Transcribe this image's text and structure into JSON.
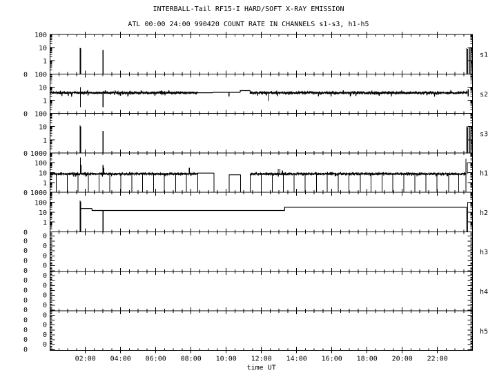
{
  "chart_data": {
    "type": "line",
    "title": "INTERBALL-Tail RF15-I HARD/SOFT X-RAY EMISSION",
    "subtitle": "ATL 00:00 24:00 990420  COUNT RATE IN CHANNELS s1-s3, h1-h5",
    "xlabel": "time UT",
    "xlim_hours": [
      0,
      24
    ],
    "xtick_labels": [
      {
        "t": 2,
        "label": "02:00"
      },
      {
        "t": 4,
        "label": "04:00"
      },
      {
        "t": 6,
        "label": "06:00"
      },
      {
        "t": 8,
        "label": "08:00"
      },
      {
        "t": 10,
        "label": "10:00"
      },
      {
        "t": 12,
        "label": "12:00"
      },
      {
        "t": 14,
        "label": "14:00"
      },
      {
        "t": 16,
        "label": "16:00"
      },
      {
        "t": 18,
        "label": "18:00"
      },
      {
        "t": 20,
        "label": "20:00"
      },
      {
        "t": 22,
        "label": "22:00"
      }
    ],
    "y_scale": "log",
    "grid": false,
    "panels": [
      {
        "name": "s1",
        "ylim": [
          0.1,
          100
        ],
        "ylabels": [
          {
            "v": 100,
            "label": "100"
          },
          {
            "v": 10,
            "label": "10"
          },
          {
            "v": 1,
            "label": "1"
          },
          {
            "v": 0.1,
            "label": "0"
          }
        ],
        "segments": [],
        "spikes": [
          {
            "t": 1.7,
            "from": 0.1,
            "to": 9.4
          },
          {
            "t": 1.73,
            "from": 0.1,
            "to": 9
          },
          {
            "t": 3.0,
            "from": 0.1,
            "to": 6.8
          },
          {
            "t": 23.66,
            "from": 0.1,
            "to": 9
          },
          {
            "t": 23.72,
            "from": 0.1,
            "to": 8
          },
          {
            "t": 23.8,
            "from": 0.1,
            "to": 9
          },
          {
            "t": 23.9,
            "from": 0.1,
            "to": 7
          }
        ],
        "dropouts": []
      },
      {
        "name": "s2",
        "ylim": [
          0.1,
          100
        ],
        "ylabels": [
          {
            "v": 100,
            "label": "100"
          },
          {
            "v": 10,
            "label": "10"
          },
          {
            "v": 1,
            "label": "1"
          },
          {
            "v": 0.1,
            "label": "0"
          }
        ],
        "segments": [
          {
            "from": 0.0,
            "to": 8.38,
            "value": 3.7,
            "noisy": true
          },
          {
            "from": 8.38,
            "to": 9.25,
            "value": 3.7,
            "noisy": false
          },
          {
            "from": 9.25,
            "to": 10.16,
            "value": 4.0,
            "noisy": false
          },
          {
            "from": 10.16,
            "to": 10.8,
            "value": 4.0,
            "noisy": false
          },
          {
            "from": 10.8,
            "to": 11.36,
            "value": 5.4,
            "noisy": false
          },
          {
            "from": 11.36,
            "to": 23.7,
            "value": 3.7,
            "noisy": true
          }
        ],
        "spikes": [
          {
            "t": 1.72,
            "from": 0.3,
            "to": 10
          },
          {
            "t": 3.0,
            "from": 0.3,
            "to": 3.7
          },
          {
            "t": 10.16,
            "from": 2.0,
            "to": 4.0
          },
          {
            "t": 12.4,
            "from": 0.9,
            "to": 3.7
          },
          {
            "t": 23.75,
            "from": 2.0,
            "to": 7
          }
        ],
        "dropouts": []
      },
      {
        "name": "s3",
        "ylim": [
          0.1,
          100
        ],
        "ylabels": [
          {
            "v": 100,
            "label": "100"
          },
          {
            "v": 10,
            "label": "10"
          },
          {
            "v": 1,
            "label": "1"
          },
          {
            "v": 0.1,
            "label": "0"
          }
        ],
        "segments": [],
        "spikes": [
          {
            "t": 1.7,
            "from": 0.1,
            "to": 12
          },
          {
            "t": 1.73,
            "from": 0.1,
            "to": 10
          },
          {
            "t": 3.0,
            "from": 0.1,
            "to": 4.6
          },
          {
            "t": 23.66,
            "from": 0.1,
            "to": 10
          },
          {
            "t": 23.72,
            "from": 0.1,
            "to": 9
          },
          {
            "t": 23.8,
            "from": 0.1,
            "to": 10
          },
          {
            "t": 23.9,
            "from": 0.1,
            "to": 6
          }
        ],
        "dropouts": []
      },
      {
        "name": "h1",
        "ylim": [
          0.1,
          1000
        ],
        "ylabels": [
          {
            "v": 1000,
            "label": "1000"
          },
          {
            "v": 100,
            "label": "100"
          },
          {
            "v": 10,
            "label": "10"
          },
          {
            "v": 1,
            "label": "1"
          },
          {
            "v": 0.1,
            "label": "0"
          }
        ],
        "segments": [
          {
            "from": 0.0,
            "to": 8.38,
            "value": 7.5,
            "noisy": true
          },
          {
            "from": 8.38,
            "to": 9.31,
            "value": 9,
            "noisy": false
          },
          {
            "from": 10.16,
            "to": 10.82,
            "value": 6,
            "noisy": false
          },
          {
            "from": 11.36,
            "to": 23.62,
            "value": 7.5,
            "noisy": true
          }
        ],
        "spikes": [
          {
            "t": 1.72,
            "from": 7.5,
            "to": 350
          },
          {
            "t": 1.76,
            "from": 7.5,
            "to": 63
          },
          {
            "t": 3.0,
            "from": 7.5,
            "to": 60
          },
          {
            "t": 3.05,
            "from": 7.5,
            "to": 30
          },
          {
            "t": 7.9,
            "from": 7.5,
            "to": 30
          },
          {
            "t": 12.95,
            "from": 7.5,
            "to": 24
          },
          {
            "t": 13.05,
            "from": 7.5,
            "to": 24
          },
          {
            "t": 13.2,
            "from": 7.5,
            "to": 16
          },
          {
            "t": 13.35,
            "from": 7.5,
            "to": 11
          },
          {
            "t": 23.62,
            "from": 7.5,
            "to": 250
          },
          {
            "t": 23.7,
            "from": 7.5,
            "to": 100
          }
        ],
        "dropouts": [
          0.35,
          0.98,
          1.59,
          2.16,
          2.77,
          3.39,
          4.01,
          4.63,
          5.25,
          5.88,
          6.49,
          7.12,
          7.74,
          8.38,
          9.31,
          10.16,
          10.82,
          11.36,
          12.0,
          12.61,
          13.24,
          13.85,
          14.49,
          15.12,
          15.74,
          16.36,
          16.98,
          17.61,
          18.22,
          18.85,
          19.46,
          20.09,
          20.72,
          21.35,
          21.97,
          22.63,
          23.2,
          23.62
        ]
      },
      {
        "name": "h2",
        "ylim": [
          0.1,
          1000
        ],
        "ylabels": [
          {
            "v": 1000,
            "label": "1000"
          },
          {
            "v": 100,
            "label": "100"
          },
          {
            "v": 10,
            "label": "10"
          },
          {
            "v": 1,
            "label": "1"
          },
          {
            "v": 0.1,
            "label": "0"
          }
        ],
        "segments": [
          {
            "from": 1.72,
            "to": 2.38,
            "value": 23,
            "noisy": false
          },
          {
            "from": 2.38,
            "to": 13.32,
            "value": 14.5,
            "noisy": false
          },
          {
            "from": 13.32,
            "to": 23.66,
            "value": 32,
            "noisy": false
          }
        ],
        "spikes": [
          {
            "t": 1.7,
            "from": 0.1,
            "to": 145
          },
          {
            "t": 1.73,
            "from": 0.1,
            "to": 120
          },
          {
            "t": 3.0,
            "from": 0.1,
            "to": 14.5
          },
          {
            "t": 23.66,
            "from": 0.1,
            "to": 32
          },
          {
            "t": 23.72,
            "from": 0.1,
            "to": 100
          }
        ],
        "dropouts": []
      },
      {
        "name": "h3",
        "ylim": null,
        "ylabels": [
          {
            "label": "0"
          },
          {
            "label": "0"
          },
          {
            "label": "0"
          },
          {
            "label": "0"
          },
          {
            "label": "0"
          },
          {
            "label": "0"
          },
          {
            "label": "0"
          },
          {
            "label": "0"
          }
        ],
        "segments": [],
        "spikes": [],
        "dropouts": []
      },
      {
        "name": "h4",
        "ylim": null,
        "ylabels": [
          {
            "label": "0"
          },
          {
            "label": "0"
          },
          {
            "label": "0"
          },
          {
            "label": "0"
          },
          {
            "label": "0"
          },
          {
            "label": "0"
          },
          {
            "label": "0"
          },
          {
            "label": "0"
          }
        ],
        "segments": [],
        "spikes": [],
        "dropouts": []
      },
      {
        "name": "h5",
        "ylim": null,
        "ylabels": [
          {
            "label": "0"
          },
          {
            "label": "0"
          },
          {
            "label": "0"
          },
          {
            "label": "0"
          },
          {
            "label": "0"
          },
          {
            "label": "0"
          },
          {
            "label": "0"
          },
          {
            "label": "0"
          }
        ],
        "segments": [],
        "spikes": [],
        "dropouts": []
      }
    ],
    "line_color": "#000000",
    "background": "#ffffff"
  }
}
